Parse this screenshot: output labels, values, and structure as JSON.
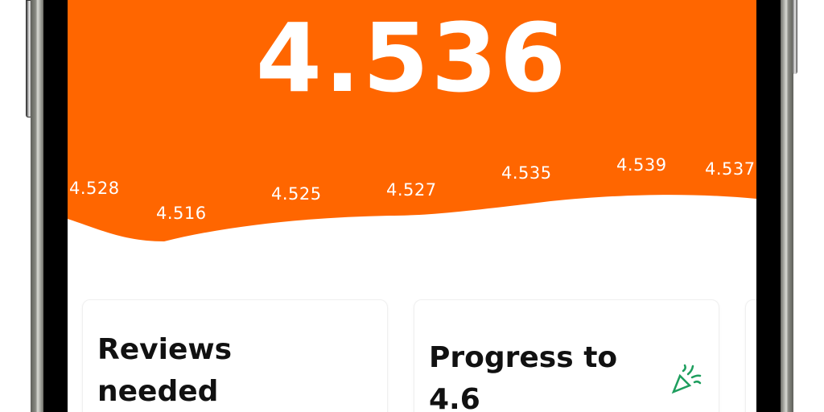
{
  "header": {
    "current_rating": "4.536",
    "accent_color": "#FF6600"
  },
  "chart_data": {
    "type": "area",
    "values": [
      4.528,
      4.516,
      4.525,
      4.527,
      4.535,
      4.539,
      4.537
    ],
    "labels": [
      "4.528",
      "4.516",
      "4.525",
      "4.527",
      "4.535",
      "4.539",
      "4.537"
    ]
  },
  "cards": [
    {
      "title_line1": "Reviews",
      "title_line2": "needed"
    },
    {
      "title_line1": "Progress to",
      "title_line2": "4.6",
      "icon": "party-popper-icon",
      "icon_color": "#1E9E5E"
    }
  ]
}
